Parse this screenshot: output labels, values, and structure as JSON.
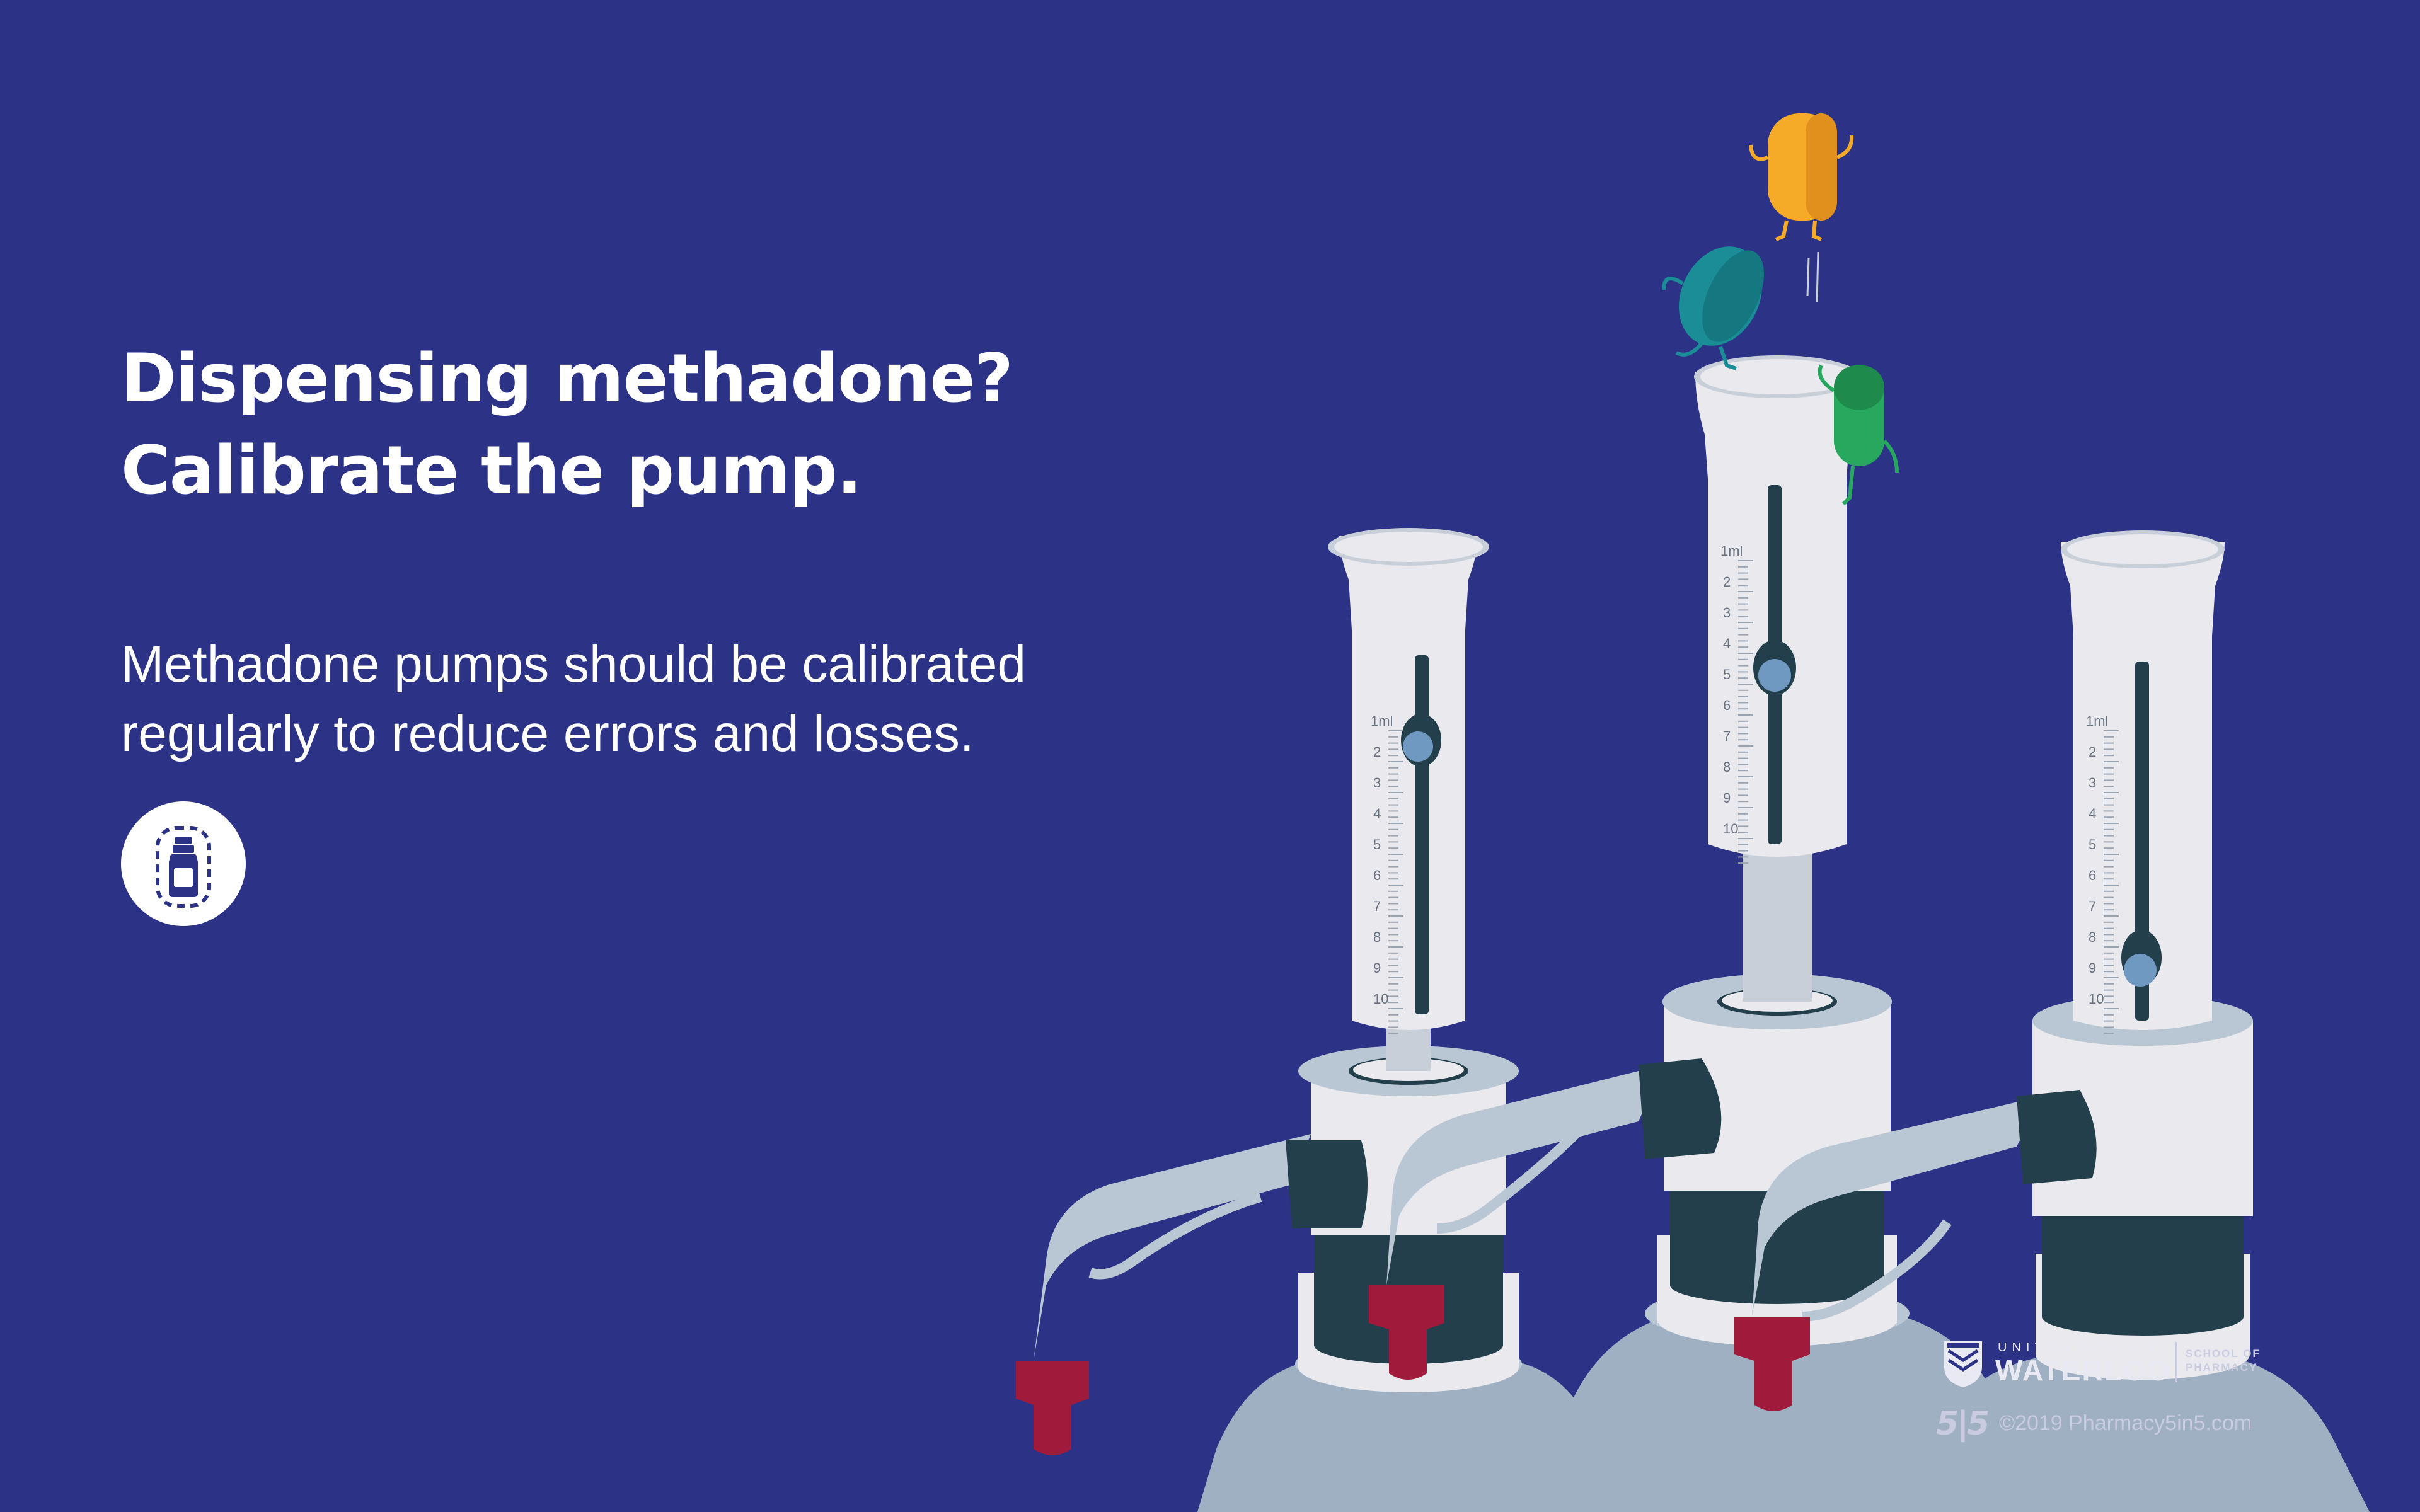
{
  "headline": {
    "line1": "Dispensing methadone?",
    "line2": "Calibrate the pump."
  },
  "body": {
    "line1": "Methadone pumps should be calibrated",
    "line2": "regularly to reduce errors and losses."
  },
  "badge": {
    "icon": "medicine-vial-icon"
  },
  "pump_scale": {
    "unit_label": "1ml",
    "ticks": [
      "2",
      "3",
      "4",
      "5",
      "6",
      "7",
      "8",
      "9",
      "10"
    ]
  },
  "footer": {
    "university_line": "UNIVERSITY OF",
    "university_name": "WATERLOO",
    "school_line1": "SCHOOL OF",
    "school_line2": "PHARMACY",
    "brand_mark": "5|5",
    "copyright": "©2019 Pharmacy5in5.com"
  },
  "colors": {
    "background": "#2c3387",
    "text": "#ffffff",
    "pump_body": "#e9e9ee",
    "pump_shadow": "#c9cfd9",
    "bottle": "#9fb0c2",
    "dark_band": "#243f4c",
    "nozzle_tip": "#a01a3c",
    "pill_yellow": "#f5aa28",
    "pill_teal": "#1b8d97",
    "pill_green": "#28a85f"
  }
}
